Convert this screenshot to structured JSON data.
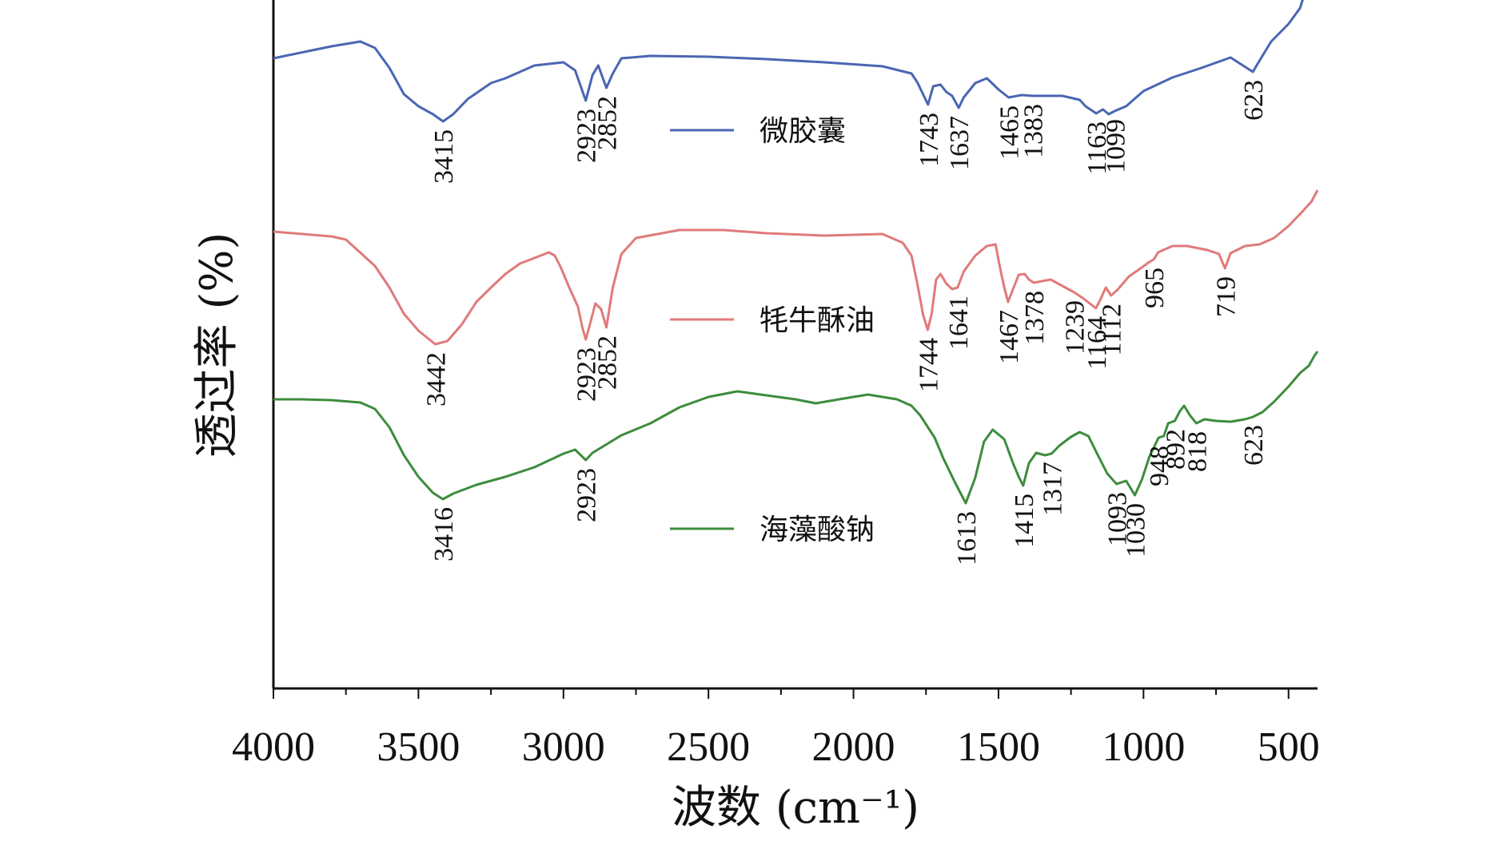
{
  "chart_data": {
    "type": "line",
    "title": "",
    "xlabel": "波数 (cm⁻¹)",
    "ylabel": "透过率 (%)",
    "xlim": [
      4000,
      400
    ],
    "x_reversed": true,
    "x_ticks": [
      4000,
      3500,
      3000,
      2500,
      2000,
      1500,
      1000,
      500
    ],
    "y_ticks_shown": false,
    "grid": false,
    "legend_placement": "inline",
    "series": [
      {
        "name": "微胶囊",
        "color": "#4a66b3",
        "points": [
          [
            4000,
            73
          ],
          [
            3800,
            58
          ],
          [
            3700,
            52
          ],
          [
            3650,
            60
          ],
          [
            3600,
            85
          ],
          [
            3550,
            118
          ],
          [
            3500,
            133
          ],
          [
            3450,
            143
          ],
          [
            3415,
            152
          ],
          [
            3380,
            143
          ],
          [
            3330,
            124
          ],
          [
            3250,
            104
          ],
          [
            3200,
            98
          ],
          [
            3100,
            82
          ],
          [
            3000,
            78
          ],
          [
            2960,
            88
          ],
          [
            2923,
            126
          ],
          [
            2900,
            94
          ],
          [
            2880,
            82
          ],
          [
            2852,
            110
          ],
          [
            2830,
            92
          ],
          [
            2800,
            73
          ],
          [
            2700,
            70
          ],
          [
            2500,
            71
          ],
          [
            2300,
            74
          ],
          [
            2100,
            78
          ],
          [
            1900,
            83
          ],
          [
            1800,
            92
          ],
          [
            1780,
            103
          ],
          [
            1760,
            118
          ],
          [
            1743,
            131
          ],
          [
            1725,
            108
          ],
          [
            1700,
            106
          ],
          [
            1680,
            115
          ],
          [
            1660,
            120
          ],
          [
            1637,
            135
          ],
          [
            1620,
            122
          ],
          [
            1580,
            104
          ],
          [
            1540,
            98
          ],
          [
            1500,
            112
          ],
          [
            1465,
            122
          ],
          [
            1420,
            119
          ],
          [
            1383,
            120
          ],
          [
            1340,
            120
          ],
          [
            1280,
            120
          ],
          [
            1220,
            125
          ],
          [
            1200,
            133
          ],
          [
            1163,
            142
          ],
          [
            1140,
            137
          ],
          [
            1120,
            143
          ],
          [
            1099,
            139
          ],
          [
            1060,
            133
          ],
          [
            1000,
            114
          ],
          [
            900,
            97
          ],
          [
            800,
            85
          ],
          [
            700,
            72
          ],
          [
            623,
            90
          ],
          [
            600,
            76
          ],
          [
            560,
            52
          ],
          [
            500,
            30
          ],
          [
            460,
            10
          ],
          [
            430,
            -25
          ],
          [
            410,
            -40
          ],
          [
            400,
            -50
          ]
        ]
      },
      {
        "name": "牦牛酥油",
        "color": "#e07a7a",
        "points": [
          [
            4000,
            290
          ],
          [
            3900,
            293
          ],
          [
            3800,
            296
          ],
          [
            3750,
            300
          ],
          [
            3650,
            333
          ],
          [
            3600,
            360
          ],
          [
            3550,
            393
          ],
          [
            3500,
            414
          ],
          [
            3442,
            431
          ],
          [
            3400,
            427
          ],
          [
            3350,
            406
          ],
          [
            3300,
            378
          ],
          [
            3250,
            360
          ],
          [
            3200,
            343
          ],
          [
            3150,
            330
          ],
          [
            3100,
            323
          ],
          [
            3050,
            316
          ],
          [
            3030,
            320
          ],
          [
            3010,
            334
          ],
          [
            2980,
            360
          ],
          [
            2950,
            384
          ],
          [
            2935,
            410
          ],
          [
            2923,
            425
          ],
          [
            2910,
            408
          ],
          [
            2890,
            380
          ],
          [
            2870,
            387
          ],
          [
            2852,
            410
          ],
          [
            2830,
            360
          ],
          [
            2800,
            318
          ],
          [
            2750,
            298
          ],
          [
            2600,
            288
          ],
          [
            2450,
            288
          ],
          [
            2300,
            292
          ],
          [
            2100,
            295
          ],
          [
            1900,
            293
          ],
          [
            1830,
            304
          ],
          [
            1800,
            320
          ],
          [
            1780,
            355
          ],
          [
            1760,
            394
          ],
          [
            1744,
            413
          ],
          [
            1730,
            392
          ],
          [
            1715,
            350
          ],
          [
            1700,
            343
          ],
          [
            1680,
            355
          ],
          [
            1660,
            362
          ],
          [
            1641,
            360
          ],
          [
            1620,
            340
          ],
          [
            1580,
            320
          ],
          [
            1540,
            308
          ],
          [
            1510,
            306
          ],
          [
            1495,
            335
          ],
          [
            1480,
            360
          ],
          [
            1467,
            378
          ],
          [
            1450,
            362
          ],
          [
            1430,
            344
          ],
          [
            1410,
            343
          ],
          [
            1395,
            350
          ],
          [
            1378,
            354
          ],
          [
            1350,
            352
          ],
          [
            1320,
            350
          ],
          [
            1280,
            358
          ],
          [
            1239,
            366
          ],
          [
            1210,
            373
          ],
          [
            1185,
            380
          ],
          [
            1164,
            386
          ],
          [
            1150,
            376
          ],
          [
            1130,
            360
          ],
          [
            1112,
            370
          ],
          [
            1090,
            363
          ],
          [
            1050,
            346
          ],
          [
            1010,
            336
          ],
          [
            980,
            328
          ],
          [
            965,
            325
          ],
          [
            950,
            316
          ],
          [
            900,
            308
          ],
          [
            850,
            308
          ],
          [
            780,
            313
          ],
          [
            740,
            318
          ],
          [
            719,
            336
          ],
          [
            700,
            317
          ],
          [
            650,
            308
          ],
          [
            600,
            306
          ],
          [
            550,
            298
          ],
          [
            500,
            283
          ],
          [
            450,
            264
          ],
          [
            420,
            252
          ],
          [
            400,
            238
          ]
        ]
      },
      {
        "name": "海藻酸钠",
        "color": "#3d8c3d",
        "points": [
          [
            4000,
            500
          ],
          [
            3900,
            500
          ],
          [
            3800,
            501
          ],
          [
            3700,
            504
          ],
          [
            3650,
            512
          ],
          [
            3600,
            535
          ],
          [
            3550,
            570
          ],
          [
            3500,
            597
          ],
          [
            3450,
            617
          ],
          [
            3416,
            625
          ],
          [
            3380,
            618
          ],
          [
            3300,
            607
          ],
          [
            3200,
            597
          ],
          [
            3100,
            585
          ],
          [
            3000,
            568
          ],
          [
            2960,
            563
          ],
          [
            2923,
            576
          ],
          [
            2900,
            567
          ],
          [
            2850,
            556
          ],
          [
            2800,
            545
          ],
          [
            2700,
            530
          ],
          [
            2600,
            510
          ],
          [
            2500,
            497
          ],
          [
            2400,
            490
          ],
          [
            2300,
            495
          ],
          [
            2200,
            500
          ],
          [
            2130,
            505
          ],
          [
            2050,
            500
          ],
          [
            1950,
            494
          ],
          [
            1850,
            500
          ],
          [
            1800,
            508
          ],
          [
            1770,
            520
          ],
          [
            1720,
            548
          ],
          [
            1690,
            574
          ],
          [
            1650,
            604
          ],
          [
            1613,
            630
          ],
          [
            1580,
            598
          ],
          [
            1550,
            553
          ],
          [
            1520,
            538
          ],
          [
            1480,
            550
          ],
          [
            1450,
            580
          ],
          [
            1430,
            597
          ],
          [
            1415,
            608
          ],
          [
            1395,
            580
          ],
          [
            1370,
            567
          ],
          [
            1340,
            570
          ],
          [
            1317,
            568
          ],
          [
            1290,
            558
          ],
          [
            1250,
            547
          ],
          [
            1220,
            541
          ],
          [
            1190,
            546
          ],
          [
            1160,
            568
          ],
          [
            1125,
            593
          ],
          [
            1093,
            606
          ],
          [
            1060,
            602
          ],
          [
            1030,
            620
          ],
          [
            1005,
            600
          ],
          [
            980,
            572
          ],
          [
            948,
            548
          ],
          [
            930,
            546
          ],
          [
            915,
            530
          ],
          [
            892,
            527
          ],
          [
            875,
            515
          ],
          [
            860,
            508
          ],
          [
            840,
            520
          ],
          [
            818,
            530
          ],
          [
            790,
            525
          ],
          [
            750,
            527
          ],
          [
            700,
            528
          ],
          [
            650,
            525
          ],
          [
            623,
            522
          ],
          [
            590,
            516
          ],
          [
            550,
            503
          ],
          [
            500,
            484
          ],
          [
            460,
            467
          ],
          [
            430,
            458
          ],
          [
            410,
            445
          ],
          [
            400,
            440
          ]
        ]
      }
    ],
    "annotations": [
      {
        "series": 0,
        "wavenumber": 3415,
        "label": "3415"
      },
      {
        "series": 0,
        "wavenumber": 2923,
        "label": "2923"
      },
      {
        "series": 0,
        "wavenumber": 2852,
        "label": "2852"
      },
      {
        "series": 0,
        "wavenumber": 1743,
        "label": "1743"
      },
      {
        "series": 0,
        "wavenumber": 1637,
        "label": "1637"
      },
      {
        "series": 0,
        "wavenumber": 1465,
        "label": "1465"
      },
      {
        "series": 0,
        "wavenumber": 1383,
        "label": "1383"
      },
      {
        "series": 0,
        "wavenumber": 1163,
        "label": "1163"
      },
      {
        "series": 0,
        "wavenumber": 1099,
        "label": "1099"
      },
      {
        "series": 0,
        "wavenumber": 623,
        "label": "623"
      },
      {
        "series": 1,
        "wavenumber": 3442,
        "label": "3442"
      },
      {
        "series": 1,
        "wavenumber": 2923,
        "label": "2923"
      },
      {
        "series": 1,
        "wavenumber": 2852,
        "label": "2852"
      },
      {
        "series": 1,
        "wavenumber": 1744,
        "label": "1744"
      },
      {
        "series": 1,
        "wavenumber": 1641,
        "label": "1641"
      },
      {
        "series": 1,
        "wavenumber": 1467,
        "label": "1467"
      },
      {
        "series": 1,
        "wavenumber": 1378,
        "label": "1378"
      },
      {
        "series": 1,
        "wavenumber": 1239,
        "label": "1239"
      },
      {
        "series": 1,
        "wavenumber": 1164,
        "label": "1164"
      },
      {
        "series": 1,
        "wavenumber": 1112,
        "label": "1112"
      },
      {
        "series": 1,
        "wavenumber": 965,
        "label": "965"
      },
      {
        "series": 1,
        "wavenumber": 719,
        "label": "719"
      },
      {
        "series": 2,
        "wavenumber": 3416,
        "label": "3416"
      },
      {
        "series": 2,
        "wavenumber": 2923,
        "label": "2923"
      },
      {
        "series": 2,
        "wavenumber": 1613,
        "label": "1613"
      },
      {
        "series": 2,
        "wavenumber": 1415,
        "label": "1415"
      },
      {
        "series": 2,
        "wavenumber": 1317,
        "label": "1317"
      },
      {
        "series": 2,
        "wavenumber": 1093,
        "label": "1093"
      },
      {
        "series": 2,
        "wavenumber": 1030,
        "label": "1030"
      },
      {
        "series": 2,
        "wavenumber": 948,
        "label": "948"
      },
      {
        "series": 2,
        "wavenumber": 892,
        "label": "892"
      },
      {
        "series": 2,
        "wavenumber": 818,
        "label": "818"
      },
      {
        "series": 2,
        "wavenumber": 623,
        "label": "623"
      }
    ]
  }
}
